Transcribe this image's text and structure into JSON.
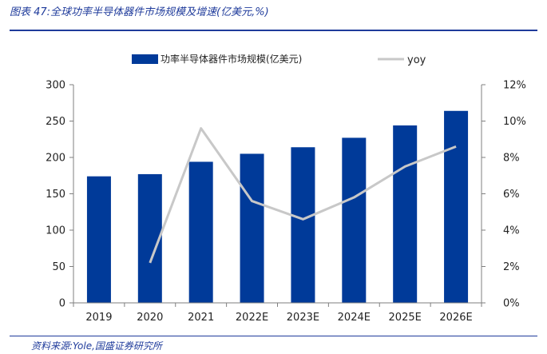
{
  "header": {
    "title": "图表 47:全球功率半导体器件市场规模及增速(亿美元,%)"
  },
  "footer": {
    "source": "资料来源:Yole,国盛证券研究所"
  },
  "colors": {
    "bar": "#003a99",
    "line": "#c8c8c8",
    "text": "#1f3b9b"
  },
  "chart_data": {
    "type": "bar",
    "categories": [
      "2019",
      "2020",
      "2021",
      "2022E",
      "2023E",
      "2024E",
      "2025E",
      "2026E"
    ],
    "series": [
      {
        "name": "功率半导体器件市场规模(亿美元)",
        "type": "bar",
        "axis": "left",
        "values": [
          174,
          177,
          194,
          205,
          214,
          227,
          244,
          264
        ]
      },
      {
        "name": "yoy",
        "type": "line",
        "axis": "right",
        "values": [
          null,
          2.2,
          9.6,
          5.6,
          4.6,
          5.8,
          7.5,
          8.6
        ]
      }
    ],
    "y_left": {
      "min": 0,
      "max": 300,
      "ticks": [
        "0",
        "50",
        "100",
        "150",
        "200",
        "250",
        "300"
      ]
    },
    "y_right": {
      "min": 0,
      "max": 12,
      "ticks": [
        "0%",
        "2%",
        "4%",
        "6%",
        "8%",
        "10%",
        "12%"
      ]
    },
    "legend": {
      "position": "top"
    },
    "grid": false
  }
}
